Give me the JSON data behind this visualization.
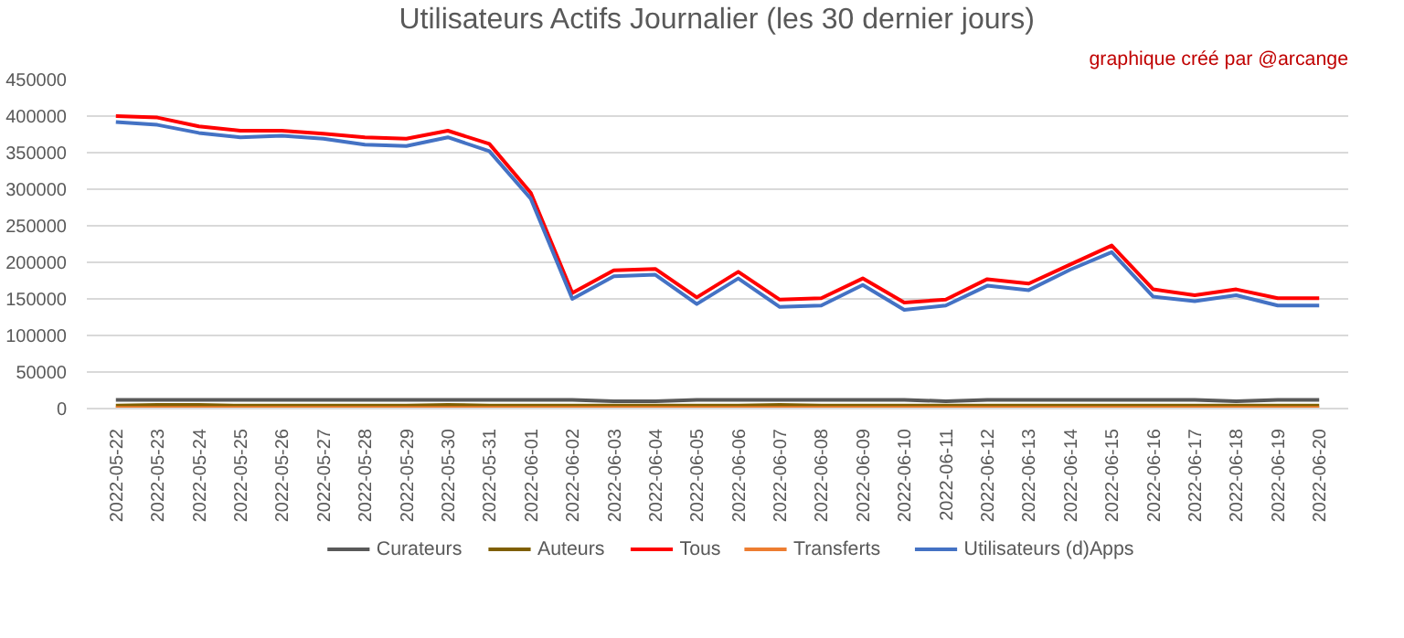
{
  "chart_data": {
    "type": "line",
    "title": "Utilisateurs Actifs Journalier (les 30 dernier jours)",
    "annotations": [
      "graphique créé par @arcange"
    ],
    "categories": [
      "2022-05-22",
      "2022-05-23",
      "2022-05-24",
      "2022-05-25",
      "2022-05-26",
      "2022-05-27",
      "2022-05-28",
      "2022-05-29",
      "2022-05-30",
      "2022-05-31",
      "2022-06-01",
      "2022-06-02",
      "2022-06-03",
      "2022-06-04",
      "2022-06-05",
      "2022-06-06",
      "2022-06-07",
      "2022-06-08",
      "2022-06-09",
      "2022-06-10",
      "2022-06-11",
      "2022-06-12",
      "2022-06-13",
      "2022-06-14",
      "2022-06-15",
      "2022-06-16",
      "2022-06-17",
      "2022-06-18",
      "2022-06-19",
      "2022-06-20"
    ],
    "series": [
      {
        "name": "Curateurs",
        "color": "#595959",
        "values": [
          12000,
          12000,
          12000,
          12000,
          12000,
          12000,
          12000,
          12000,
          12000,
          12000,
          12000,
          12000,
          10000,
          10000,
          12000,
          12000,
          12000,
          12000,
          12000,
          12000,
          10000,
          12000,
          12000,
          12000,
          12000,
          12000,
          12000,
          10000,
          12000,
          12000
        ]
      },
      {
        "name": "Auteurs",
        "color": "#7f5f00",
        "values": [
          4000,
          5000,
          5000,
          4000,
          4000,
          4000,
          4000,
          4000,
          5000,
          4000,
          4000,
          4000,
          4000,
          4000,
          4000,
          4000,
          5000,
          4000,
          4000,
          4000,
          4000,
          4000,
          4000,
          4000,
          4000,
          4000,
          4000,
          4000,
          4000,
          4000
        ]
      },
      {
        "name": "Tous",
        "color": "#ff0000",
        "values": [
          400000,
          398000,
          386000,
          380000,
          380000,
          376000,
          371000,
          369000,
          380000,
          362000,
          295000,
          158000,
          189000,
          191000,
          152000,
          187000,
          149000,
          151000,
          178000,
          145000,
          149000,
          177000,
          171000,
          197000,
          223000,
          163000,
          155000,
          163000,
          151000,
          151000
        ]
      },
      {
        "name": "Transferts",
        "color": "#ed7d31",
        "values": [
          1000,
          1000,
          1000,
          1000,
          1000,
          1000,
          1000,
          1000,
          1000,
          1000,
          1000,
          1000,
          1000,
          1000,
          1000,
          1000,
          1000,
          1000,
          1000,
          1000,
          1000,
          1000,
          1000,
          1000,
          1000,
          1000,
          1000,
          1000,
          1000,
          1000
        ]
      },
      {
        "name": "Utilisateurs (d)Apps",
        "color": "#4472c4",
        "values": [
          392000,
          388000,
          377000,
          371000,
          373000,
          369000,
          361000,
          359000,
          371000,
          352000,
          287000,
          150000,
          181000,
          183000,
          143000,
          178000,
          139000,
          141000,
          169000,
          135000,
          141000,
          168000,
          162000,
          190000,
          214000,
          153000,
          147000,
          155000,
          141000,
          141000
        ]
      }
    ],
    "ylim": [
      0,
      450000
    ],
    "yticks": [
      0,
      50000,
      100000,
      150000,
      200000,
      250000,
      300000,
      350000,
      400000,
      450000
    ],
    "grid": "y",
    "legend": "bottom"
  }
}
